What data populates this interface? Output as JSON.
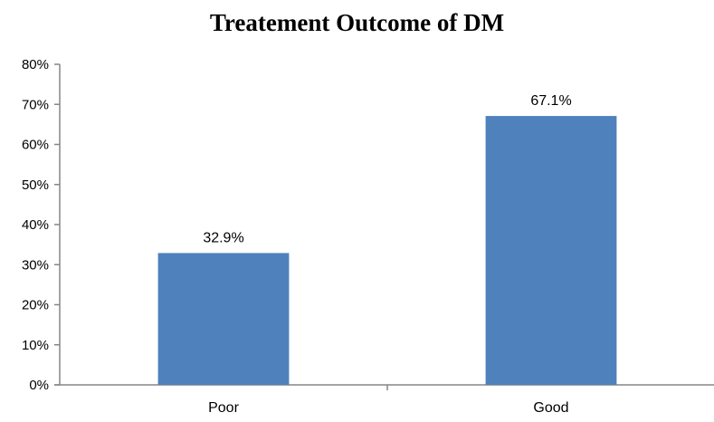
{
  "chart_data": {
    "type": "bar",
    "title": "Treatement Outcome of DM",
    "xlabel": "",
    "ylabel": "",
    "categories": [
      "Poor",
      "Good"
    ],
    "values": [
      32.9,
      67.1
    ],
    "data_labels": [
      "32.9%",
      "67.1%"
    ],
    "ylim": [
      0,
      80
    ],
    "y_ticks": [
      0,
      10,
      20,
      30,
      40,
      50,
      60,
      70,
      80
    ],
    "y_tick_labels": [
      "0%",
      "10%",
      "20%",
      "30%",
      "40%",
      "50%",
      "60%",
      "70%",
      "80%"
    ],
    "grid": false,
    "legend": "none",
    "bar_color": "#4f81bd",
    "axis_color": "#868686"
  }
}
